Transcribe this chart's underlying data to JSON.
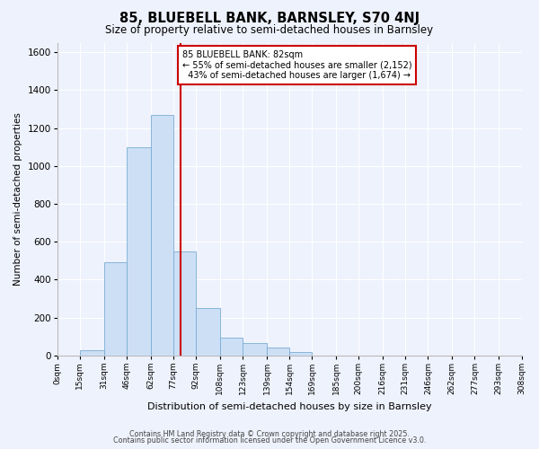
{
  "title": "85, BLUEBELL BANK, BARNSLEY, S70 4NJ",
  "subtitle": "Size of property relative to semi-detached houses in Barnsley",
  "xlabel": "Distribution of semi-detached houses by size in Barnsley",
  "ylabel": "Number of semi-detached properties",
  "bin_labels": [
    "0sqm",
    "15sqm",
    "31sqm",
    "46sqm",
    "62sqm",
    "77sqm",
    "92sqm",
    "108sqm",
    "123sqm",
    "139sqm",
    "154sqm",
    "169sqm",
    "185sqm",
    "200sqm",
    "216sqm",
    "231sqm",
    "246sqm",
    "262sqm",
    "277sqm",
    "293sqm",
    "308sqm"
  ],
  "bar_values": [
    0,
    30,
    490,
    1100,
    1270,
    550,
    250,
    95,
    65,
    40,
    20,
    0,
    0,
    0,
    0,
    0,
    0,
    0,
    0,
    0
  ],
  "bar_color": "#ccdff5",
  "bar_edge_color": "#7aadd4",
  "vline_x": 82,
  "vline_label": "85 BLUEBELL BANK: 82sqm",
  "pct_smaller": 55,
  "count_smaller": 2152,
  "pct_larger": 43,
  "count_larger": 1674,
  "annotation_box_color": "#ffffff",
  "annotation_box_edge": "#cc0000",
  "vline_color": "#cc0000",
  "ylim": [
    0,
    1650
  ],
  "yticks": [
    0,
    200,
    400,
    600,
    800,
    1000,
    1200,
    1400,
    1600
  ],
  "bg_color": "#eef2fc",
  "footer1": "Contains HM Land Registry data © Crown copyright and database right 2025.",
  "footer2": "Contains public sector information licensed under the Open Government Licence v3.0.",
  "bin_edges": [
    0,
    15,
    31,
    46,
    62,
    77,
    92,
    108,
    123,
    139,
    154,
    169,
    185,
    200,
    216,
    231,
    246,
    262,
    277,
    293,
    308
  ]
}
